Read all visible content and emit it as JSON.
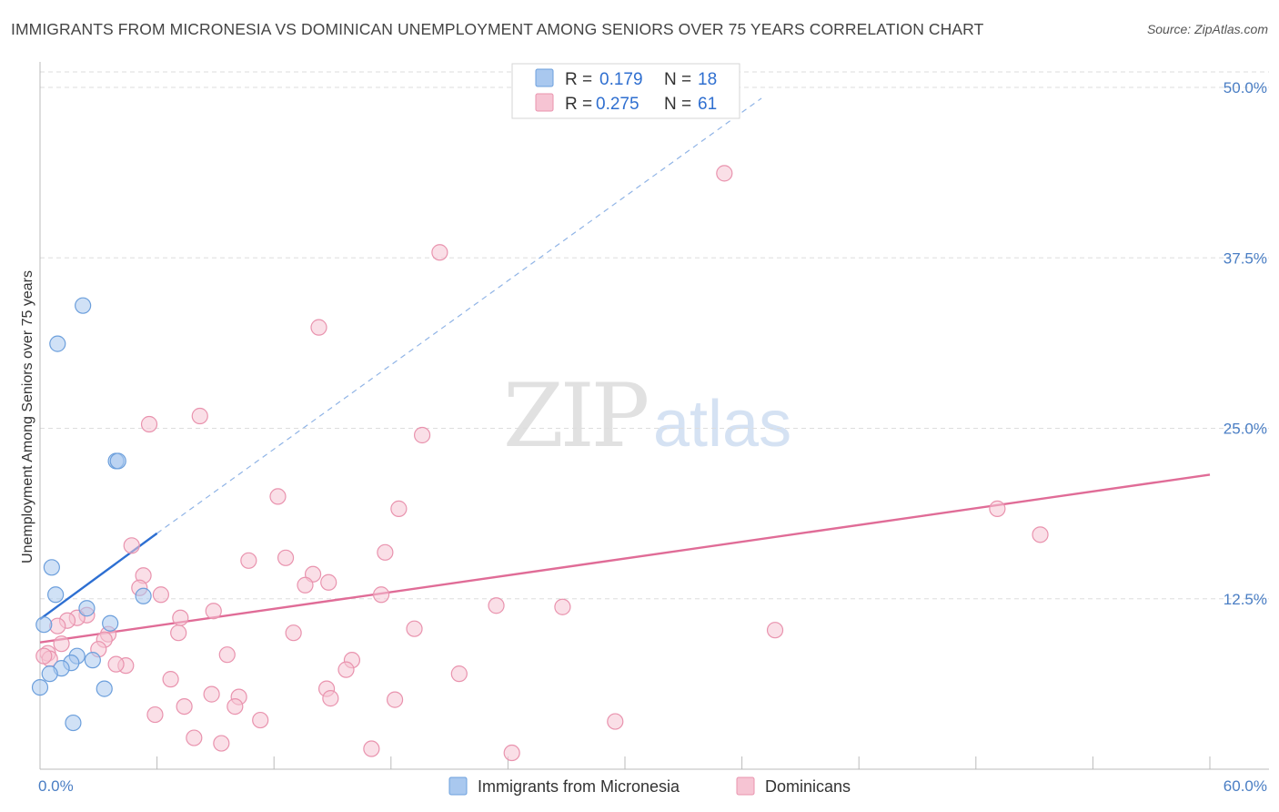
{
  "header": {
    "title": "IMMIGRANTS FROM MICRONESIA VS DOMINICAN UNEMPLOYMENT AMONG SENIORS OVER 75 YEARS CORRELATION CHART",
    "source": "Source: ZipAtlas.com"
  },
  "watermark": {
    "zip": "ZIP",
    "atlas": "atlas"
  },
  "colors": {
    "blue_fill": "#a9c8ef",
    "blue_stroke": "#6c9fdc",
    "blue_line": "#2d6fd2",
    "pink_fill": "#f6c4d3",
    "pink_stroke": "#e993ae",
    "pink_line": "#e06c97",
    "tick_text": "#4a7ec4",
    "grid": "#dddddd"
  },
  "legend": {
    "rows": [
      {
        "r_label": "R =",
        "r_value": "0.179",
        "n_label": "N =",
        "n_value": "18",
        "series": "blue"
      },
      {
        "r_label": "R =",
        "r_value": "0.275",
        "n_label": "N =",
        "n_value": "61",
        "series": "pink"
      }
    ]
  },
  "chart_data": {
    "type": "scatter",
    "title": "IMMIGRANTS FROM MICRONESIA VS DOMINICAN UNEMPLOYMENT AMONG SENIORS OVER 75 YEARS CORRELATION CHART",
    "xlabel": "",
    "ylabel": "Unemployment Among Seniors over 75 years",
    "xlim": [
      0,
      60
    ],
    "ylim": [
      0,
      50
    ],
    "x_tick_labels": [
      "0.0%",
      "60.0%"
    ],
    "y_tick_values": [
      12.5,
      25.0,
      37.5,
      50.0
    ],
    "y_tick_labels": [
      "12.5%",
      "25.0%",
      "37.5%",
      "50.0%"
    ],
    "grid": true,
    "series": [
      {
        "name": "Immigrants from Micronesia",
        "color": "blue",
        "r": 0.179,
        "n": 18,
        "trend": {
          "x0": 0,
          "y0": 11.0,
          "x1": 6.0,
          "y1": 17.3,
          "extend_to_x": 37.0,
          "extend_to_y": 49.2
        },
        "points": [
          [
            2.2,
            34.0
          ],
          [
            0.9,
            31.2
          ],
          [
            3.9,
            22.6
          ],
          [
            4.0,
            22.6
          ],
          [
            0.6,
            14.8
          ],
          [
            0.8,
            12.8
          ],
          [
            2.4,
            11.8
          ],
          [
            5.3,
            12.7
          ],
          [
            0.2,
            10.6
          ],
          [
            3.6,
            10.7
          ],
          [
            1.9,
            8.3
          ],
          [
            1.6,
            7.8
          ],
          [
            2.7,
            8.0
          ],
          [
            1.1,
            7.4
          ],
          [
            0.5,
            7.0
          ],
          [
            0.0,
            6.0
          ],
          [
            3.3,
            5.9
          ],
          [
            1.7,
            3.4
          ]
        ]
      },
      {
        "name": "Dominicans",
        "color": "pink",
        "r": 0.275,
        "n": 61,
        "trend": {
          "x0": 0,
          "y0": 9.3,
          "x1": 60,
          "y1": 21.6
        },
        "points": [
          [
            35.1,
            43.7
          ],
          [
            20.5,
            37.9
          ],
          [
            14.3,
            32.4
          ],
          [
            8.2,
            25.9
          ],
          [
            5.6,
            25.3
          ],
          [
            19.6,
            24.5
          ],
          [
            12.2,
            20.0
          ],
          [
            18.4,
            19.1
          ],
          [
            49.1,
            19.1
          ],
          [
            51.3,
            17.2
          ],
          [
            4.7,
            16.4
          ],
          [
            17.7,
            15.9
          ],
          [
            12.6,
            15.5
          ],
          [
            10.7,
            15.3
          ],
          [
            14.0,
            14.3
          ],
          [
            5.3,
            14.2
          ],
          [
            14.8,
            13.7
          ],
          [
            13.6,
            13.5
          ],
          [
            5.1,
            13.3
          ],
          [
            6.2,
            12.8
          ],
          [
            17.5,
            12.8
          ],
          [
            23.4,
            12.0
          ],
          [
            26.8,
            11.9
          ],
          [
            8.9,
            11.6
          ],
          [
            2.4,
            11.3
          ],
          [
            7.2,
            11.1
          ],
          [
            1.9,
            11.1
          ],
          [
            1.4,
            10.9
          ],
          [
            0.9,
            10.5
          ],
          [
            37.7,
            10.2
          ],
          [
            19.2,
            10.3
          ],
          [
            13.0,
            10.0
          ],
          [
            7.1,
            10.0
          ],
          [
            3.5,
            9.9
          ],
          [
            3.3,
            9.5
          ],
          [
            1.1,
            9.2
          ],
          [
            3.0,
            8.8
          ],
          [
            0.4,
            8.5
          ],
          [
            0.5,
            8.1
          ],
          [
            9.6,
            8.4
          ],
          [
            16.0,
            8.0
          ],
          [
            4.4,
            7.6
          ],
          [
            3.9,
            7.7
          ],
          [
            15.7,
            7.3
          ],
          [
            21.5,
            7.0
          ],
          [
            6.7,
            6.6
          ],
          [
            14.7,
            5.9
          ],
          [
            8.8,
            5.5
          ],
          [
            10.2,
            5.3
          ],
          [
            14.9,
            5.2
          ],
          [
            18.2,
            5.1
          ],
          [
            7.4,
            4.6
          ],
          [
            10.0,
            4.6
          ],
          [
            5.9,
            4.0
          ],
          [
            11.3,
            3.6
          ],
          [
            29.5,
            3.5
          ],
          [
            7.9,
            2.3
          ],
          [
            9.3,
            1.9
          ],
          [
            17.0,
            1.5
          ],
          [
            24.2,
            1.2
          ],
          [
            0.2,
            8.3
          ]
        ]
      }
    ]
  }
}
